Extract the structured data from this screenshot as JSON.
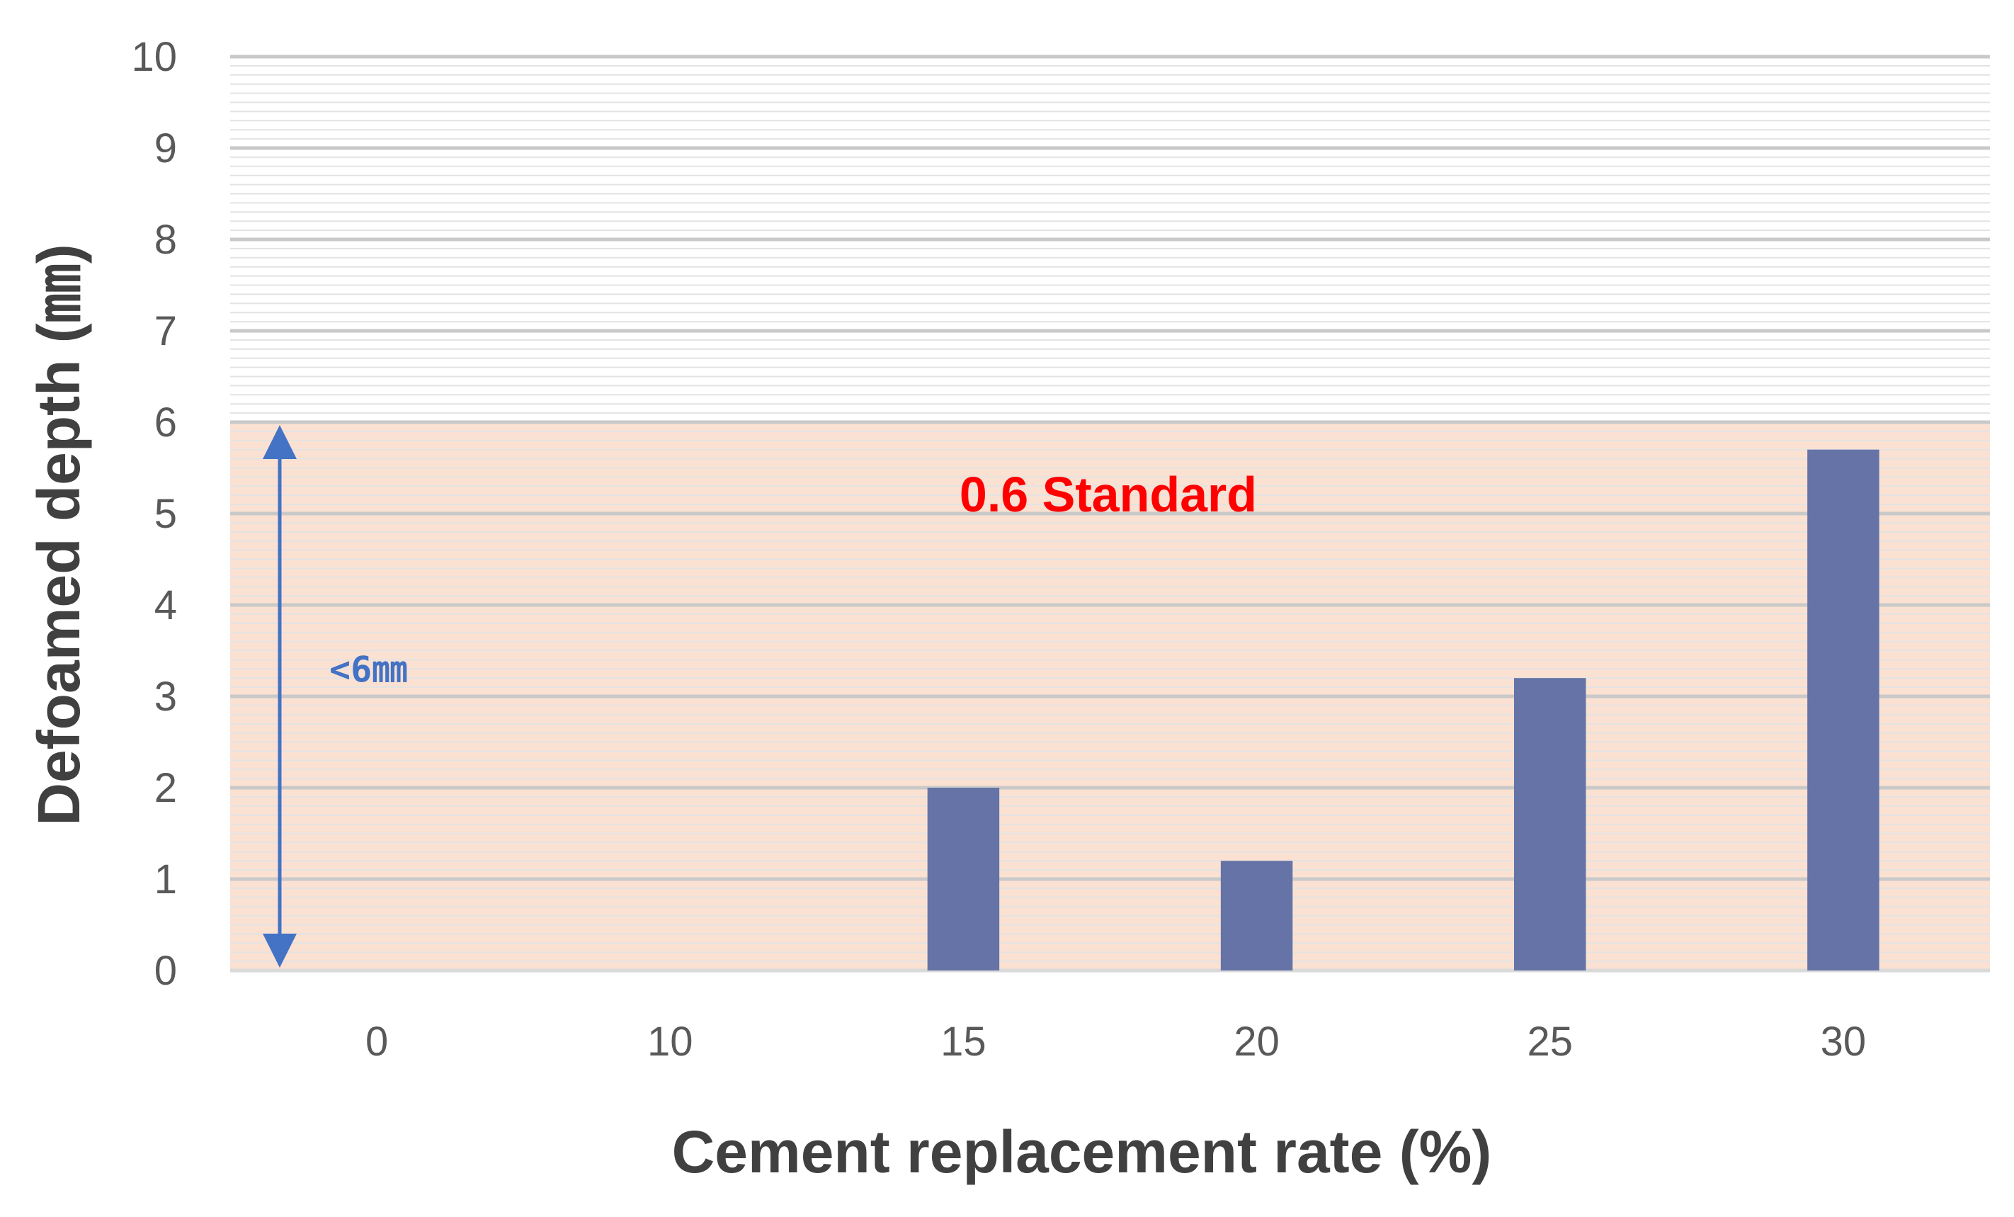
{
  "chart_data": {
    "type": "bar",
    "xlabel": "Cement replacement rate (%)",
    "ylabel": "Defoamed depth (㎜)",
    "categories": [
      "0",
      "10",
      "15",
      "20",
      "25",
      "30"
    ],
    "values": [
      0,
      0,
      2.0,
      1.2,
      3.2,
      5.7
    ],
    "ylim": [
      0,
      10
    ],
    "yticks": [
      "0",
      "1",
      "2",
      "3",
      "4",
      "5",
      "6",
      "7",
      "8",
      "9",
      "10"
    ],
    "grid": true,
    "legend": "none",
    "annotations": {
      "standard_label": "0.6 Standard",
      "range_label": "<6㎜",
      "shaded_range": [
        0,
        6
      ]
    },
    "colors": {
      "bar": "#6573a6",
      "shade": "#fbe1d2",
      "standard_text": "#ff0000",
      "arrow": "#4472c4",
      "grid_major": "#c9c9c9",
      "grid_minor": "#e3e3e3"
    }
  }
}
